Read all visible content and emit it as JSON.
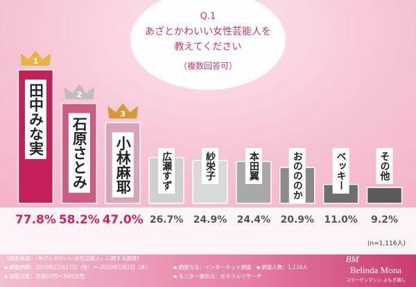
{
  "chart_data": {
    "type": "bar",
    "question": "Q.1",
    "title": "あざとかわいい女性芸能人を",
    "title2": "教えてください",
    "subtitle": "（複数回答可）",
    "categories": [
      "田中みな実",
      "石原さとみ",
      "小林麻耶",
      "広瀬すず",
      "紗栄子",
      "本田翼",
      "おのののか",
      "ベッキー",
      "その他"
    ],
    "values": [
      77.8,
      58.2,
      47.0,
      26.7,
      24.9,
      24.4,
      20.9,
      11.0,
      9.2
    ],
    "value_labels": [
      "77.8%",
      "58.2%",
      "47.0%",
      "26.7%",
      "24.9%",
      "24.4%",
      "20.9%",
      "11.0%",
      "9.2%"
    ],
    "colors": [
      "#c41f58",
      "#cc5c82",
      "#d9a3b8",
      "#cfcfcf",
      "#d9d9d9",
      "#a9a9a9",
      "#8a8a8a",
      "#6e6e6e",
      "#5a5a5a"
    ],
    "label_colors": [
      "#d0245e",
      "#d0245e",
      "#d0245e",
      "#555555",
      "#555555",
      "#555555",
      "#555555",
      "#555555",
      "#555555"
    ],
    "ranks": [
      "1",
      "2",
      "3"
    ],
    "sample": "(n=1,116人)"
  },
  "footer": {
    "notes_left": [
      "《調査概要：「あざとかわいい女性芸能人」に関する調査》",
      "▪ 調査期間：2019年12月27日（金）～ 2020年1月2日（木）",
      "▪ 調査対象：全国20代～30代女性"
    ],
    "notes_right": [
      "▪ 調査方法：インターネット調査　▪ 調査人数：1,116人",
      "▪ モニター提供元：ゼネラルリサーチ"
    ],
    "logo_mark": "BM",
    "logo_name": "Belinda Mona",
    "logo_sub": "コラーゲンマシン よもぎ蒸し"
  }
}
